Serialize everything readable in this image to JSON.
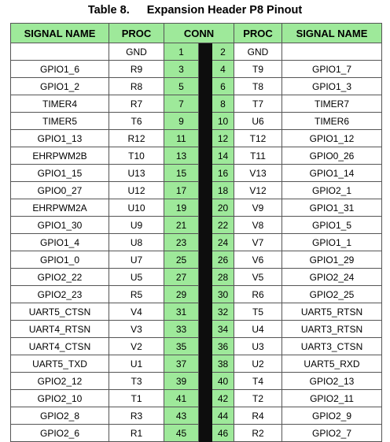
{
  "caption": {
    "number": "Table 8.",
    "title": "Expansion Header P8 Pinout"
  },
  "headers": {
    "signal_left": "SIGNAL NAME",
    "proc_left": "PROC",
    "conn": "CONN",
    "proc_right": "PROC",
    "signal_right": "SIGNAL NAME"
  },
  "rows": [
    {
      "sl": "",
      "pl": "GND",
      "a": "1",
      "b": "2",
      "pr": "GND",
      "sr": ""
    },
    {
      "sl": "GPIO1_6",
      "pl": "R9",
      "a": "3",
      "b": "4",
      "pr": "T9",
      "sr": "GPIO1_7"
    },
    {
      "sl": "GPIO1_2",
      "pl": "R8",
      "a": "5",
      "b": "6",
      "pr": "T8",
      "sr": "GPIO1_3"
    },
    {
      "sl": "TIMER4",
      "pl": "R7",
      "a": "7",
      "b": "8",
      "pr": "T7",
      "sr": "TIMER7"
    },
    {
      "sl": "TIMER5",
      "pl": "T6",
      "a": "9",
      "b": "10",
      "pr": "U6",
      "sr": "TIMER6"
    },
    {
      "sl": "GPIO1_13",
      "pl": "R12",
      "a": "11",
      "b": "12",
      "pr": "T12",
      "sr": "GPIO1_12"
    },
    {
      "sl": "EHRPWM2B",
      "pl": "T10",
      "a": "13",
      "b": "14",
      "pr": "T11",
      "sr": "GPIO0_26"
    },
    {
      "sl": "GPIO1_15",
      "pl": "U13",
      "a": "15",
      "b": "16",
      "pr": "V13",
      "sr": "GPIO1_14"
    },
    {
      "sl": "GPIO0_27",
      "pl": "U12",
      "a": "17",
      "b": "18",
      "pr": "V12",
      "sr": "GPIO2_1"
    },
    {
      "sl": "EHRPWM2A",
      "pl": "U10",
      "a": "19",
      "b": "20",
      "pr": "V9",
      "sr": "GPIO1_31"
    },
    {
      "sl": "GPIO1_30",
      "pl": "U9",
      "a": "21",
      "b": "22",
      "pr": "V8",
      "sr": "GPIO1_5"
    },
    {
      "sl": "GPIO1_4",
      "pl": "U8",
      "a": "23",
      "b": "24",
      "pr": "V7",
      "sr": "GPIO1_1"
    },
    {
      "sl": "GPIO1_0",
      "pl": "U7",
      "a": "25",
      "b": "26",
      "pr": "V6",
      "sr": "GPIO1_29"
    },
    {
      "sl": "GPIO2_22",
      "pl": "U5",
      "a": "27",
      "b": "28",
      "pr": "V5",
      "sr": "GPIO2_24"
    },
    {
      "sl": "GPIO2_23",
      "pl": "R5",
      "a": "29",
      "b": "30",
      "pr": "R6",
      "sr": "GPIO2_25"
    },
    {
      "sl": "UART5_CTSN",
      "pl": "V4",
      "a": "31",
      "b": "32",
      "pr": "T5",
      "sr": "UART5_RTSN"
    },
    {
      "sl": "UART4_RTSN",
      "pl": "V3",
      "a": "33",
      "b": "34",
      "pr": "U4",
      "sr": "UART3_RTSN"
    },
    {
      "sl": "UART4_CTSN",
      "pl": "V2",
      "a": "35",
      "b": "36",
      "pr": "U3",
      "sr": "UART3_CTSN"
    },
    {
      "sl": "UART5_TXD",
      "pl": "U1",
      "a": "37",
      "b": "38",
      "pr": "U2",
      "sr": "UART5_RXD"
    },
    {
      "sl": "GPIO2_12",
      "pl": "T3",
      "a": "39",
      "b": "40",
      "pr": "T4",
      "sr": "GPIO2_13"
    },
    {
      "sl": "GPIO2_10",
      "pl": "T1",
      "a": "41",
      "b": "42",
      "pr": "T2",
      "sr": "GPIO2_11"
    },
    {
      "sl": "GPIO2_8",
      "pl": "R3",
      "a": "43",
      "b": "44",
      "pr": "R4",
      "sr": "GPIO2_9"
    },
    {
      "sl": "GPIO2_6",
      "pl": "R1",
      "a": "45",
      "b": "46",
      "pr": "R2",
      "sr": "GPIO2_7"
    }
  ],
  "colors": {
    "header_bg": "#9ee99a",
    "pin_bg": "#9ee99a",
    "divider": "#0d0d0d"
  }
}
